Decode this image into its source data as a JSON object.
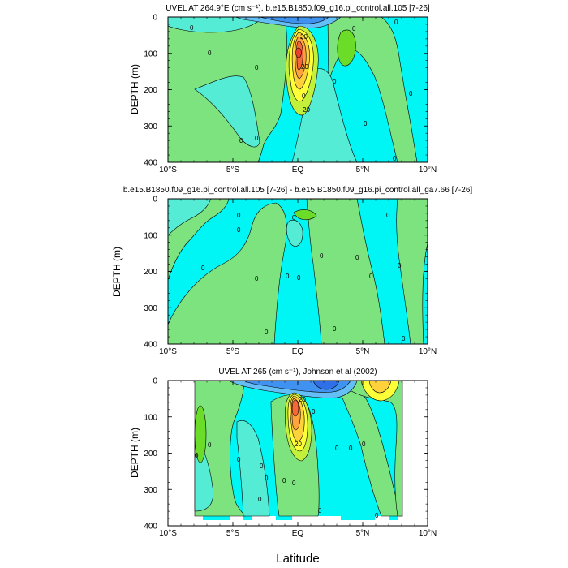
{
  "figure": {
    "xlabel": "Latitude",
    "colors": {
      "cyan": "#00f5f5",
      "aqua": "#55ecd6",
      "green_light": "#7ce37e",
      "green": "#6bdc28",
      "yellow_green": "#c3f03a",
      "yellow": "#ffff38",
      "gold": "#ffd23c",
      "orange": "#ffa33d",
      "red_orange": "#f5683a",
      "red": "#e8402e",
      "blue_light": "#63bff5",
      "blue": "#3f92f0",
      "blue_dark": "#2f6fe8",
      "white": "#ffffff"
    }
  },
  "chart_data": [
    {
      "type": "contour",
      "title": "UVEL AT 264.9°E (cm s⁻¹), b.e15.B1850.f09_g16.pi_control.all.105 [7-26]",
      "xlabel": "",
      "ylabel": "DEPTH (m)",
      "xlim": [
        -10,
        10
      ],
      "ylim": [
        400,
        0
      ],
      "x_ticks": [
        "10°S",
        "5°S",
        "EQ",
        "5°N",
        "10°N"
      ],
      "y_ticks": [
        "0",
        "100",
        "200",
        "300",
        "400"
      ],
      "contour_labels": [
        "0",
        "0",
        "0",
        "0",
        "0",
        "0",
        "0",
        "0",
        "0",
        "0",
        "0",
        "20",
        "20",
        "20",
        "0"
      ],
      "features": [
        {
          "name": "undercurrent core",
          "lat": 0.0,
          "depth_m": 75,
          "max_value": 80
        },
        {
          "name": "north surface eastward",
          "lat": 3.3,
          "depth_m": 60,
          "max_value": 10
        },
        {
          "name": "surface westward",
          "lat": -1.5,
          "depth_m": 15,
          "min_value": -30
        }
      ]
    },
    {
      "type": "contour",
      "title": "b.e15.B1850.f09_g16.pi_control.all.105 [7-26] - b.e15.B1850.f09_g16.pi_control.all_ga7.66 [7-26]",
      "xlabel": "",
      "ylabel": "DEPTH (m)",
      "xlim": [
        -10,
        10
      ],
      "ylim": [
        400,
        0
      ],
      "x_ticks": [
        "10°S",
        "5°S",
        "EQ",
        "5°N",
        "10°N"
      ],
      "y_ticks": [
        "0",
        "100",
        "200",
        "300",
        "400"
      ],
      "contour_labels": [
        "0",
        "0",
        "0",
        "0",
        "0",
        "0",
        "0",
        "0",
        "0",
        "0",
        "0",
        "0",
        "0",
        "0",
        "0"
      ],
      "features": [
        {
          "name": "difference near equator",
          "lat": 0.0,
          "depth_m": 90,
          "min_value": -10
        }
      ]
    },
    {
      "type": "contour",
      "title": "UVEL AT 265 (cm s⁻¹), Johnson et al (2002)",
      "xlabel": "Latitude",
      "ylabel": "DEPTH (m)",
      "xlim": [
        -10,
        10
      ],
      "ylim": [
        400,
        0
      ],
      "x_ticks": [
        "10°S",
        "5°S",
        "EQ",
        "5°N",
        "10°N"
      ],
      "y_ticks": [
        "0",
        "100",
        "200",
        "300",
        "400"
      ],
      "contour_labels": [
        "0",
        "0",
        "0",
        "0",
        "0",
        "0",
        "0",
        "0",
        "0",
        "0",
        "0",
        "0",
        "0",
        "0",
        "20",
        "20"
      ],
      "features": [
        {
          "name": "undercurrent core",
          "lat": -0.3,
          "depth_m": 70,
          "max_value": 60
        },
        {
          "name": "north surface eastward",
          "lat": 6.0,
          "depth_m": 15,
          "max_value": 30
        },
        {
          "name": "surface westward",
          "lat": 1.5,
          "depth_m": 15,
          "min_value": -40
        }
      ]
    }
  ]
}
